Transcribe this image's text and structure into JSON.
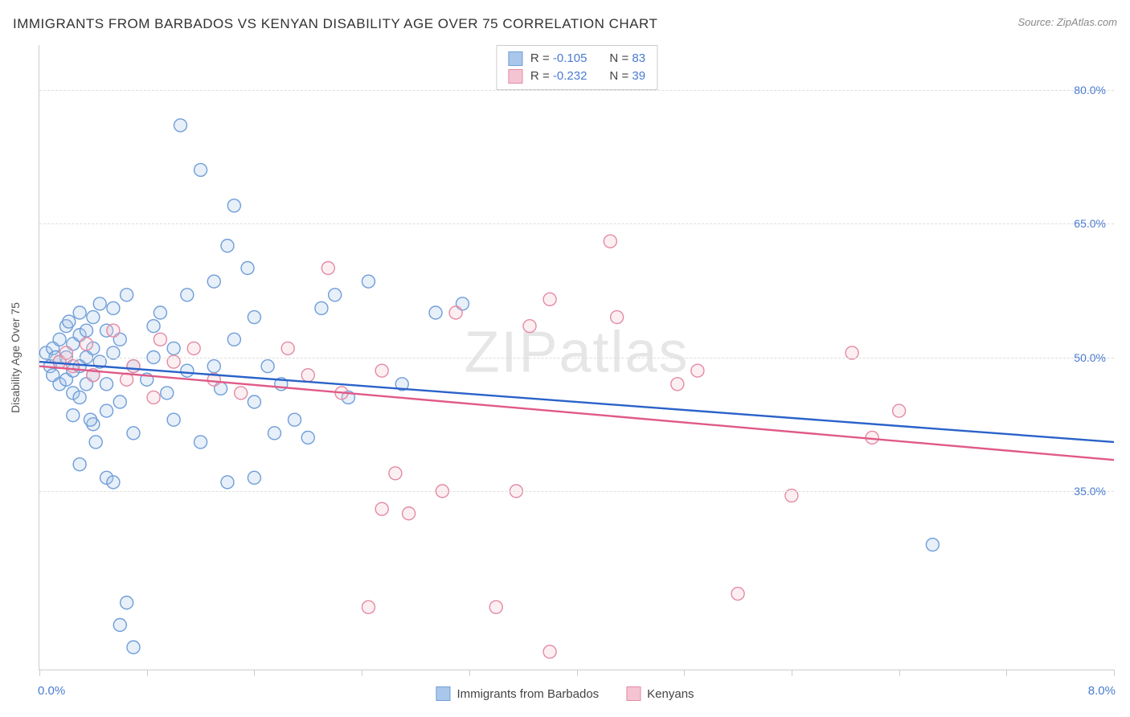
{
  "title": "IMMIGRANTS FROM BARBADOS VS KENYAN DISABILITY AGE OVER 75 CORRELATION CHART",
  "source": "Source: ZipAtlas.com",
  "watermark": "ZIPatlas",
  "chart": {
    "type": "scatter",
    "y_axis_label": "Disability Age Over 75",
    "x_range": [
      0.0,
      8.0
    ],
    "y_range": [
      15.0,
      85.0
    ],
    "x_min_label": "0.0%",
    "x_max_label": "8.0%",
    "x_tick_step_pct": 10,
    "y_ticks": [
      {
        "value": 35.0,
        "label": "35.0%"
      },
      {
        "value": 50.0,
        "label": "50.0%"
      },
      {
        "value": 65.0,
        "label": "65.0%"
      },
      {
        "value": 80.0,
        "label": "80.0%"
      }
    ],
    "background_color": "#ffffff",
    "grid_color": "#dddddd",
    "marker_radius": 8,
    "marker_stroke_width": 1.4,
    "marker_fill_opacity": 0.28,
    "trend_line_width": 2.4,
    "series": [
      {
        "name": "Immigrants from Barbados",
        "color_stroke": "#6f9ed9",
        "color_fill": "#a9c7ea",
        "trend_color": "#2a62c9",
        "R": "-0.105",
        "N": "83",
        "trend": {
          "y_at_xmin": 49.5,
          "y_at_xmax": 40.5
        },
        "points": [
          [
            0.05,
            50.5
          ],
          [
            0.08,
            49.0
          ],
          [
            0.1,
            51.0
          ],
          [
            0.1,
            48.0
          ],
          [
            0.12,
            50.0
          ],
          [
            0.15,
            52.0
          ],
          [
            0.15,
            49.5
          ],
          [
            0.15,
            47.0
          ],
          [
            0.2,
            53.5
          ],
          [
            0.2,
            50.0
          ],
          [
            0.2,
            47.5
          ],
          [
            0.22,
            54.0
          ],
          [
            0.25,
            51.5
          ],
          [
            0.25,
            48.5
          ],
          [
            0.25,
            46.0
          ],
          [
            0.3,
            55.0
          ],
          [
            0.3,
            52.5
          ],
          [
            0.3,
            49.0
          ],
          [
            0.3,
            45.5
          ],
          [
            0.35,
            53.0
          ],
          [
            0.35,
            50.0
          ],
          [
            0.35,
            47.0
          ],
          [
            0.4,
            54.5
          ],
          [
            0.4,
            51.0
          ],
          [
            0.4,
            48.0
          ],
          [
            0.4,
            42.5
          ],
          [
            0.45,
            56.0
          ],
          [
            0.45,
            49.5
          ],
          [
            0.5,
            53.0
          ],
          [
            0.5,
            47.0
          ],
          [
            0.5,
            44.0
          ],
          [
            0.55,
            55.5
          ],
          [
            0.55,
            50.5
          ],
          [
            0.6,
            52.0
          ],
          [
            0.6,
            45.0
          ],
          [
            0.65,
            57.0
          ],
          [
            0.7,
            49.0
          ],
          [
            0.7,
            41.5
          ],
          [
            0.38,
            43.0
          ],
          [
            0.42,
            40.5
          ],
          [
            0.5,
            36.5
          ],
          [
            0.55,
            36.0
          ],
          [
            0.3,
            38.0
          ],
          [
            0.6,
            20.0
          ],
          [
            0.65,
            22.5
          ],
          [
            0.7,
            17.5
          ],
          [
            0.8,
            47.5
          ],
          [
            0.85,
            53.5
          ],
          [
            0.85,
            50.0
          ],
          [
            0.9,
            55.0
          ],
          [
            0.95,
            46.0
          ],
          [
            1.0,
            51.0
          ],
          [
            1.0,
            43.0
          ],
          [
            1.1,
            57.0
          ],
          [
            1.1,
            48.5
          ],
          [
            1.05,
            76.0
          ],
          [
            1.2,
            71.0
          ],
          [
            1.2,
            40.5
          ],
          [
            1.3,
            58.5
          ],
          [
            1.3,
            49.0
          ],
          [
            1.35,
            46.5
          ],
          [
            1.4,
            62.5
          ],
          [
            1.4,
            36.0
          ],
          [
            1.45,
            67.0
          ],
          [
            1.45,
            52.0
          ],
          [
            1.55,
            60.0
          ],
          [
            1.6,
            54.5
          ],
          [
            1.6,
            45.0
          ],
          [
            1.6,
            36.5
          ],
          [
            1.7,
            49.0
          ],
          [
            1.75,
            41.5
          ],
          [
            1.8,
            47.0
          ],
          [
            1.9,
            43.0
          ],
          [
            2.0,
            41.0
          ],
          [
            2.1,
            55.5
          ],
          [
            2.2,
            57.0
          ],
          [
            2.3,
            45.5
          ],
          [
            2.45,
            58.5
          ],
          [
            2.7,
            47.0
          ],
          [
            2.95,
            55.0
          ],
          [
            3.15,
            56.0
          ],
          [
            6.65,
            29.0
          ],
          [
            0.25,
            43.5
          ]
        ]
      },
      {
        "name": "Kenyans",
        "color_stroke": "#e48aa4",
        "color_fill": "#f5c4d2",
        "trend_color": "#e05a87",
        "R": "-0.232",
        "N": "39",
        "trend": {
          "y_at_xmin": 49.0,
          "y_at_xmax": 38.5
        },
        "points": [
          [
            0.15,
            49.5
          ],
          [
            0.2,
            50.5
          ],
          [
            0.25,
            49.0
          ],
          [
            0.35,
            51.5
          ],
          [
            0.4,
            48.0
          ],
          [
            0.55,
            53.0
          ],
          [
            0.65,
            47.5
          ],
          [
            0.7,
            49.0
          ],
          [
            0.85,
            45.5
          ],
          [
            1.0,
            49.5
          ],
          [
            1.15,
            51.0
          ],
          [
            1.3,
            47.5
          ],
          [
            1.5,
            46.0
          ],
          [
            1.85,
            51.0
          ],
          [
            2.0,
            48.0
          ],
          [
            2.15,
            60.0
          ],
          [
            2.25,
            46.0
          ],
          [
            2.45,
            22.0
          ],
          [
            2.55,
            33.0
          ],
          [
            2.55,
            48.5
          ],
          [
            2.65,
            37.0
          ],
          [
            2.75,
            32.5
          ],
          [
            3.0,
            35.0
          ],
          [
            3.1,
            55.0
          ],
          [
            3.4,
            22.0
          ],
          [
            3.55,
            35.0
          ],
          [
            3.65,
            53.5
          ],
          [
            3.8,
            56.5
          ],
          [
            3.8,
            17.0
          ],
          [
            4.25,
            63.0
          ],
          [
            4.3,
            54.5
          ],
          [
            4.75,
            47.0
          ],
          [
            4.9,
            48.5
          ],
          [
            5.2,
            23.5
          ],
          [
            5.6,
            34.5
          ],
          [
            6.05,
            50.5
          ],
          [
            6.2,
            41.0
          ],
          [
            6.4,
            44.0
          ],
          [
            0.9,
            52.0
          ]
        ]
      }
    ]
  },
  "stats_labels": {
    "R": "R",
    "N": "N",
    "eq": "="
  },
  "legend": {
    "series1_label": "Immigrants from Barbados",
    "series2_label": "Kenyans"
  }
}
